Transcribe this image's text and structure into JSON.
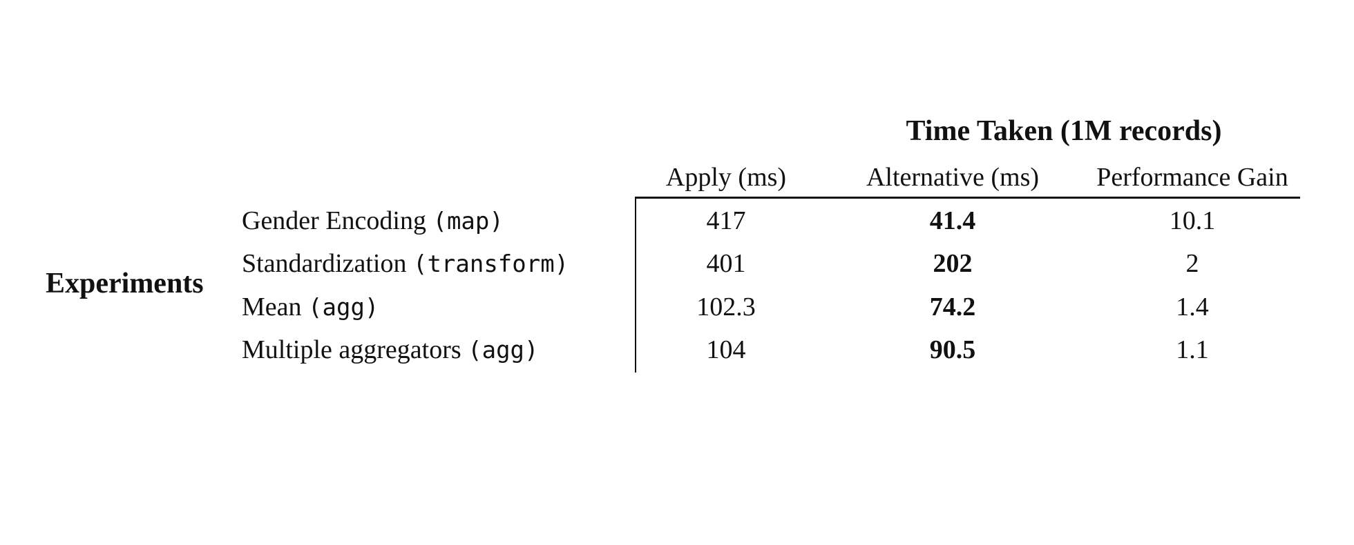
{
  "table": {
    "group_header": "Time Taken (1M records)",
    "row_group": "Experiments",
    "columns": [
      "Apply (ms)",
      "Alternative (ms)",
      "Performance Gain"
    ],
    "rows": [
      {
        "label": "Gender Encoding",
        "code": "(map)",
        "apply": 417,
        "alternative": 41.4,
        "gain": 10.1
      },
      {
        "label": "Standardization",
        "code": "(transform)",
        "apply": 401,
        "alternative": 202,
        "gain": 2
      },
      {
        "label": "Mean",
        "code": "(agg)",
        "apply": 102.3,
        "alternative": 74.2,
        "gain": 1.4
      },
      {
        "label": "Multiple aggregators",
        "code": "(agg)",
        "apply": 104,
        "alternative": 90.5,
        "gain": 1.1
      }
    ]
  }
}
